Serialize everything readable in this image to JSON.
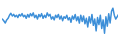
{
  "chart_data": {
    "type": "line",
    "color": "#3d8fd8",
    "tick_labels": false,
    "xlim": [
      1,
      84
    ],
    "ylim": [
      0,
      100
    ],
    "x": [
      1,
      2,
      3,
      4,
      5,
      6,
      7,
      8,
      9,
      10,
      11,
      12,
      13,
      14,
      15,
      16,
      17,
      18,
      19,
      20,
      21,
      22,
      23,
      24,
      25,
      26,
      27,
      28,
      29,
      30,
      31,
      32,
      33,
      34,
      35,
      36,
      37,
      38,
      39,
      40,
      41,
      42,
      43,
      44,
      45,
      46,
      47,
      48,
      49,
      50,
      51,
      52,
      53,
      54,
      55,
      56,
      57,
      58,
      59,
      60,
      61,
      62,
      63,
      64,
      65,
      66,
      67,
      68,
      69,
      70,
      71,
      72,
      73,
      74,
      75,
      76,
      77,
      78,
      79,
      80,
      81,
      82,
      83,
      84
    ],
    "values": [
      60,
      55,
      50,
      58,
      62,
      70,
      75,
      68,
      72,
      66,
      70,
      64,
      72,
      68,
      74,
      66,
      70,
      62,
      72,
      65,
      74,
      68,
      76,
      64,
      70,
      60,
      72,
      66,
      74,
      62,
      70,
      64,
      76,
      68,
      72,
      60,
      66,
      58,
      70,
      64,
      72,
      60,
      68,
      56,
      66,
      62,
      70,
      58,
      64,
      52,
      68,
      60,
      72,
      56,
      66,
      50,
      70,
      54,
      68,
      48,
      62,
      40,
      66,
      50,
      72,
      44,
      60,
      30,
      64,
      46,
      70,
      36,
      58,
      24,
      66,
      42,
      74,
      50,
      80,
      88,
      70,
      60,
      66,
      72
    ]
  }
}
